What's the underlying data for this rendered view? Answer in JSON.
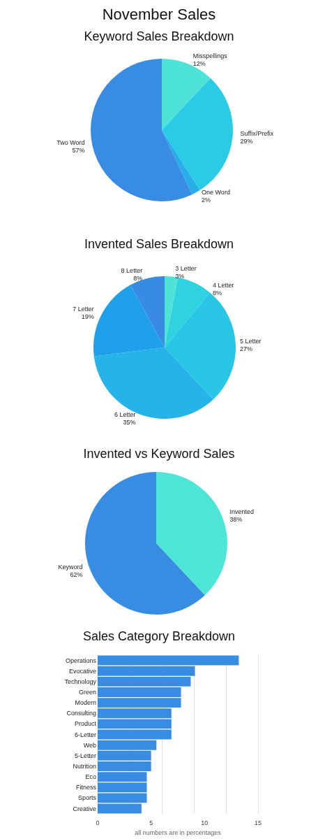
{
  "chart_data": [
    {
      "type": "pie",
      "title": "November Sales",
      "subtitle": "Keyword Sales Breakdown",
      "categories": [
        "Misspellings",
        "Suffix/Prefix",
        "One Word",
        "Two Word"
      ],
      "values": [
        12,
        29,
        2,
        57
      ],
      "value_labels": [
        "12%",
        "29%",
        "2%",
        "57%"
      ],
      "colors": [
        "#4de3d6",
        "#2acbe5",
        "#25aeea",
        "#388de2"
      ]
    },
    {
      "type": "pie",
      "title": "Invented Sales Breakdown",
      "categories": [
        "3 Letter",
        "4 Letter",
        "5 Letter",
        "6 Letter",
        "7 Letter",
        "8 Letter"
      ],
      "values": [
        3,
        8,
        27,
        35,
        19,
        8
      ],
      "value_labels": [
        "3%",
        "8%",
        "27%",
        "35%",
        "19%",
        "8%"
      ],
      "colors": [
        "#4de3d6",
        "#2ed3df",
        "#29c6e6",
        "#25b3ea",
        "#1fa0eb",
        "#388be2"
      ]
    },
    {
      "type": "pie",
      "title": "Invented vs Keyword Sales",
      "categories": [
        "Invented",
        "Keyword"
      ],
      "values": [
        38,
        62
      ],
      "value_labels": [
        "38%",
        "62%"
      ],
      "colors": [
        "#4de5d6",
        "#388de2"
      ]
    },
    {
      "type": "bar",
      "orientation": "horizontal",
      "title": "Sales Category Breakdown",
      "xlabel": "all numbers are in percentages",
      "categories": [
        "Operations",
        "Evocative",
        "Technology",
        "Green",
        "Modern",
        "Consulting",
        "Product",
        "6-Letter",
        "Web",
        "5-Letter",
        "Nutrition",
        "Eco",
        "Fitness",
        "Sports",
        "Creative"
      ],
      "values": [
        13.2,
        9.1,
        8.7,
        7.8,
        7.8,
        6.9,
        6.9,
        6.9,
        5.5,
        5.0,
        5.0,
        4.6,
        4.6,
        4.6,
        4.1
      ],
      "color": "#388de2",
      "xlim": [
        0,
        15
      ],
      "xticks": [
        0,
        5,
        10,
        15
      ],
      "grid": "x"
    }
  ]
}
